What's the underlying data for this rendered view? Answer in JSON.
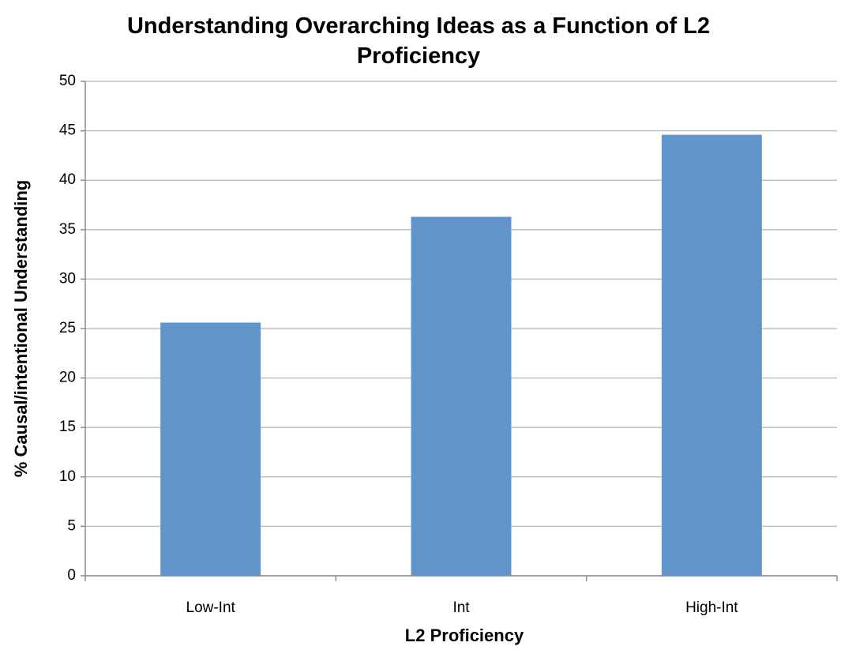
{
  "chart_data": {
    "type": "bar",
    "title": "Understanding Overarching Ideas as a Function of L2 Proficiency",
    "x_label": "L2 Proficiency",
    "y_label": "% Causal/intentional Understanding",
    "categories": [
      "Low-Int",
      "Int",
      "High-Int"
    ],
    "values": [
      25.6,
      36.3,
      44.6
    ],
    "color": "#6194c9",
    "ylim": [
      0,
      50
    ],
    "yticks": [
      0,
      5,
      10,
      15,
      20,
      25,
      30,
      35,
      40,
      45,
      50
    ],
    "grid": true
  }
}
